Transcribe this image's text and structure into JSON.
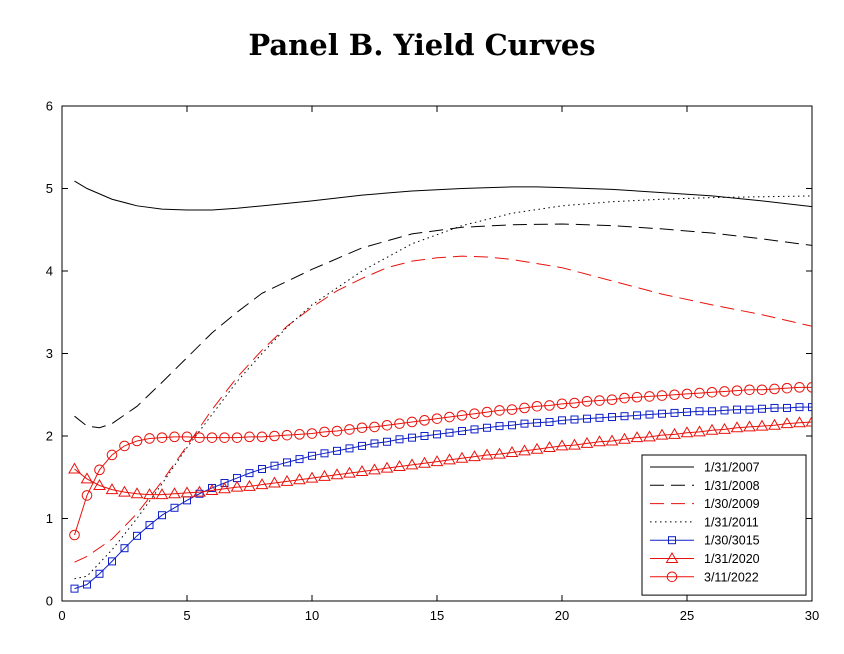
{
  "chart_data": {
    "type": "line",
    "title": "Panel B. Yield Curves",
    "xlabel": "",
    "ylabel": "",
    "xlim": [
      0,
      30
    ],
    "ylim": [
      0,
      6
    ],
    "xticks": [
      0,
      5,
      10,
      15,
      20,
      25,
      30
    ],
    "yticks": [
      0,
      1,
      2,
      3,
      4,
      5,
      6
    ],
    "grid": false,
    "legend_position": "bottom-right",
    "series": [
      {
        "name": "1/31/2007",
        "color": "#000000",
        "dash": "solid",
        "marker": "none",
        "points": [
          [
            0.5,
            5.09
          ],
          [
            1,
            5.0
          ],
          [
            2,
            4.87
          ],
          [
            3,
            4.79
          ],
          [
            4,
            4.75
          ],
          [
            5,
            4.74
          ],
          [
            6,
            4.74
          ],
          [
            7,
            4.76
          ],
          [
            8,
            4.79
          ],
          [
            9,
            4.82
          ],
          [
            10,
            4.85
          ],
          [
            12,
            4.92
          ],
          [
            14,
            4.97
          ],
          [
            16,
            5.0
          ],
          [
            18,
            5.02
          ],
          [
            19,
            5.02
          ],
          [
            20,
            5.01
          ],
          [
            22,
            4.99
          ],
          [
            24,
            4.95
          ],
          [
            26,
            4.91
          ],
          [
            28,
            4.85
          ],
          [
            30,
            4.78
          ]
        ]
      },
      {
        "name": "1/31/2008",
        "color": "#000000",
        "dash": "longdash",
        "marker": "none",
        "points": [
          [
            0.5,
            2.24
          ],
          [
            1,
            2.12
          ],
          [
            1.5,
            2.1
          ],
          [
            2,
            2.15
          ],
          [
            3,
            2.36
          ],
          [
            4,
            2.65
          ],
          [
            5,
            2.95
          ],
          [
            6,
            3.25
          ],
          [
            7,
            3.5
          ],
          [
            8,
            3.73
          ],
          [
            10,
            4.02
          ],
          [
            12,
            4.28
          ],
          [
            14,
            4.45
          ],
          [
            16,
            4.53
          ],
          [
            18,
            4.56
          ],
          [
            20,
            4.57
          ],
          [
            22,
            4.55
          ],
          [
            24,
            4.51
          ],
          [
            26,
            4.46
          ],
          [
            28,
            4.39
          ],
          [
            30,
            4.31
          ]
        ]
      },
      {
        "name": "1/30/2009",
        "color": "#e8120c",
        "dash": "longdash",
        "marker": "none",
        "points": [
          [
            0.5,
            0.47
          ],
          [
            1,
            0.54
          ],
          [
            2,
            0.75
          ],
          [
            3,
            1.06
          ],
          [
            4,
            1.45
          ],
          [
            5,
            1.88
          ],
          [
            6,
            2.32
          ],
          [
            7,
            2.71
          ],
          [
            8,
            3.04
          ],
          [
            9,
            3.33
          ],
          [
            10,
            3.56
          ],
          [
            11,
            3.76
          ],
          [
            12,
            3.91
          ],
          [
            13,
            4.04
          ],
          [
            14,
            4.12
          ],
          [
            15,
            4.16
          ],
          [
            16,
            4.18
          ],
          [
            17,
            4.17
          ],
          [
            18,
            4.14
          ],
          [
            20,
            4.04
          ],
          [
            22,
            3.88
          ],
          [
            24,
            3.72
          ],
          [
            26,
            3.59
          ],
          [
            28,
            3.47
          ],
          [
            30,
            3.33
          ]
        ]
      },
      {
        "name": "1/31/2011",
        "color": "#000000",
        "dash": "dotted",
        "marker": "none",
        "points": [
          [
            0.5,
            0.27
          ],
          [
            1,
            0.3
          ],
          [
            2,
            0.62
          ],
          [
            3,
            1.0
          ],
          [
            4,
            1.42
          ],
          [
            5,
            1.86
          ],
          [
            6,
            2.26
          ],
          [
            7,
            2.66
          ],
          [
            8,
            3.0
          ],
          [
            9,
            3.32
          ],
          [
            10,
            3.59
          ],
          [
            12,
            4.0
          ],
          [
            14,
            4.33
          ],
          [
            16,
            4.55
          ],
          [
            18,
            4.7
          ],
          [
            20,
            4.79
          ],
          [
            22,
            4.84
          ],
          [
            24,
            4.87
          ],
          [
            26,
            4.89
          ],
          [
            28,
            4.9
          ],
          [
            30,
            4.91
          ]
        ]
      },
      {
        "name": "1/30/3015",
        "color": "#0f20c8",
        "dash": "solid",
        "marker": "square",
        "points": [
          [
            0.5,
            0.15
          ],
          [
            1,
            0.2
          ],
          [
            1.5,
            0.33
          ],
          [
            2,
            0.48
          ],
          [
            2.5,
            0.64
          ],
          [
            3,
            0.79
          ],
          [
            3.5,
            0.92
          ],
          [
            4,
            1.04
          ],
          [
            4.5,
            1.13
          ],
          [
            5,
            1.22
          ],
          [
            5.5,
            1.3
          ],
          [
            6,
            1.37
          ],
          [
            6.5,
            1.43
          ],
          [
            7,
            1.49
          ],
          [
            7.5,
            1.55
          ],
          [
            8,
            1.6
          ],
          [
            8.5,
            1.64
          ],
          [
            9,
            1.68
          ],
          [
            9.5,
            1.72
          ],
          [
            10,
            1.76
          ],
          [
            10.5,
            1.79
          ],
          [
            11,
            1.82
          ],
          [
            11.5,
            1.85
          ],
          [
            12,
            1.88
          ],
          [
            12.5,
            1.91
          ],
          [
            13,
            1.93
          ],
          [
            13.5,
            1.96
          ],
          [
            14,
            1.98
          ],
          [
            14.5,
            2.0
          ],
          [
            15,
            2.02
          ],
          [
            15.5,
            2.04
          ],
          [
            16,
            2.06
          ],
          [
            16.5,
            2.08
          ],
          [
            17,
            2.1
          ],
          [
            17.5,
            2.12
          ],
          [
            18,
            2.13
          ],
          [
            18.5,
            2.15
          ],
          [
            19,
            2.16
          ],
          [
            19.5,
            2.17
          ],
          [
            20,
            2.19
          ],
          [
            20.5,
            2.2
          ],
          [
            21,
            2.21
          ],
          [
            21.5,
            2.22
          ],
          [
            22,
            2.23
          ],
          [
            22.5,
            2.24
          ],
          [
            23,
            2.25
          ],
          [
            23.5,
            2.26
          ],
          [
            24,
            2.27
          ],
          [
            24.5,
            2.28
          ],
          [
            25,
            2.29
          ],
          [
            25.5,
            2.3
          ],
          [
            26,
            2.3
          ],
          [
            26.5,
            2.31
          ],
          [
            27,
            2.32
          ],
          [
            27.5,
            2.32
          ],
          [
            28,
            2.33
          ],
          [
            28.5,
            2.34
          ],
          [
            29,
            2.34
          ],
          [
            29.5,
            2.35
          ],
          [
            30,
            2.35
          ]
        ]
      },
      {
        "name": "1/31/2020",
        "color": "#e8120c",
        "dash": "solid",
        "marker": "triangle",
        "points": [
          [
            0.5,
            1.6
          ],
          [
            1,
            1.48
          ],
          [
            1.5,
            1.4
          ],
          [
            2,
            1.35
          ],
          [
            2.5,
            1.32
          ],
          [
            3,
            1.3
          ],
          [
            3.5,
            1.29
          ],
          [
            4,
            1.29
          ],
          [
            4.5,
            1.3
          ],
          [
            5,
            1.31
          ],
          [
            5.5,
            1.32
          ],
          [
            6,
            1.34
          ],
          [
            6.5,
            1.36
          ],
          [
            7,
            1.38
          ],
          [
            7.5,
            1.39
          ],
          [
            8,
            1.41
          ],
          [
            8.5,
            1.43
          ],
          [
            9,
            1.45
          ],
          [
            9.5,
            1.47
          ],
          [
            10,
            1.49
          ],
          [
            10.5,
            1.51
          ],
          [
            11,
            1.53
          ],
          [
            11.5,
            1.55
          ],
          [
            12,
            1.57
          ],
          [
            12.5,
            1.59
          ],
          [
            13,
            1.61
          ],
          [
            13.5,
            1.63
          ],
          [
            14,
            1.65
          ],
          [
            14.5,
            1.67
          ],
          [
            15,
            1.69
          ],
          [
            15.5,
            1.71
          ],
          [
            16,
            1.73
          ],
          [
            16.5,
            1.75
          ],
          [
            17,
            1.77
          ],
          [
            17.5,
            1.78
          ],
          [
            18,
            1.8
          ],
          [
            18.5,
            1.82
          ],
          [
            19,
            1.84
          ],
          [
            19.5,
            1.86
          ],
          [
            20,
            1.88
          ],
          [
            20.5,
            1.89
          ],
          [
            21,
            1.91
          ],
          [
            21.5,
            1.93
          ],
          [
            22,
            1.94
          ],
          [
            22.5,
            1.96
          ],
          [
            23,
            1.98
          ],
          [
            23.5,
            1.99
          ],
          [
            24,
            2.01
          ],
          [
            24.5,
            2.02
          ],
          [
            25,
            2.04
          ],
          [
            25.5,
            2.05
          ],
          [
            26,
            2.07
          ],
          [
            26.5,
            2.08
          ],
          [
            27,
            2.1
          ],
          [
            27.5,
            2.11
          ],
          [
            28,
            2.12
          ],
          [
            28.5,
            2.13
          ],
          [
            29,
            2.15
          ],
          [
            29.5,
            2.16
          ],
          [
            30,
            2.17
          ]
        ]
      },
      {
        "name": "3/11/2022",
        "color": "#e8120c",
        "dash": "solid",
        "marker": "circle",
        "points": [
          [
            0.5,
            0.8
          ],
          [
            1,
            1.28
          ],
          [
            1.5,
            1.59
          ],
          [
            2,
            1.77
          ],
          [
            2.5,
            1.88
          ],
          [
            3,
            1.94
          ],
          [
            3.5,
            1.97
          ],
          [
            4,
            1.98
          ],
          [
            4.5,
            1.99
          ],
          [
            5,
            1.99
          ],
          [
            5.5,
            1.98
          ],
          [
            6,
            1.98
          ],
          [
            6.5,
            1.98
          ],
          [
            7,
            1.98
          ],
          [
            7.5,
            1.99
          ],
          [
            8,
            1.99
          ],
          [
            8.5,
            2.0
          ],
          [
            9,
            2.01
          ],
          [
            9.5,
            2.02
          ],
          [
            10,
            2.03
          ],
          [
            10.5,
            2.05
          ],
          [
            11,
            2.06
          ],
          [
            11.5,
            2.08
          ],
          [
            12,
            2.1
          ],
          [
            12.5,
            2.11
          ],
          [
            13,
            2.13
          ],
          [
            13.5,
            2.15
          ],
          [
            14,
            2.17
          ],
          [
            14.5,
            2.19
          ],
          [
            15,
            2.21
          ],
          [
            15.5,
            2.23
          ],
          [
            16,
            2.25
          ],
          [
            16.5,
            2.27
          ],
          [
            17,
            2.29
          ],
          [
            17.5,
            2.31
          ],
          [
            18,
            2.32
          ],
          [
            18.5,
            2.34
          ],
          [
            19,
            2.36
          ],
          [
            19.5,
            2.37
          ],
          [
            20,
            2.39
          ],
          [
            20.5,
            2.4
          ],
          [
            21,
            2.42
          ],
          [
            21.5,
            2.43
          ],
          [
            22,
            2.44
          ],
          [
            22.5,
            2.46
          ],
          [
            23,
            2.47
          ],
          [
            23.5,
            2.48
          ],
          [
            24,
            2.49
          ],
          [
            24.5,
            2.5
          ],
          [
            25,
            2.51
          ],
          [
            25.5,
            2.52
          ],
          [
            26,
            2.53
          ],
          [
            26.5,
            2.54
          ],
          [
            27,
            2.55
          ],
          [
            27.5,
            2.56
          ],
          [
            28,
            2.56
          ],
          [
            28.5,
            2.57
          ],
          [
            29,
            2.58
          ],
          [
            29.5,
            2.59
          ],
          [
            30,
            2.59
          ]
        ]
      }
    ]
  }
}
